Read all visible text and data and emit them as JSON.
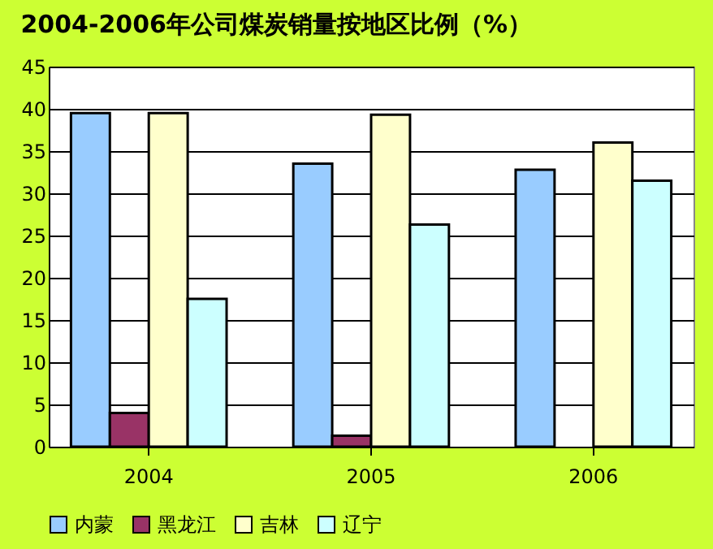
{
  "chart_data": {
    "type": "bar",
    "title": "2004-2006年公司煤炭销量按地区比例（%）",
    "categories": [
      "2004",
      "2005",
      "2006"
    ],
    "series": [
      {
        "name": "内蒙",
        "color": "#99ccff",
        "values": [
          39.5,
          33.5,
          32.8
        ]
      },
      {
        "name": "黑龙江",
        "color": "#993366",
        "values": [
          4,
          1.3,
          null
        ]
      },
      {
        "name": "吉林",
        "color": "#ffffcc",
        "values": [
          39.5,
          39.3,
          36
        ]
      },
      {
        "name": "辽宁",
        "color": "#ccffff",
        "values": [
          17.5,
          26.3,
          31.5
        ]
      }
    ],
    "ylim": [
      0,
      45
    ],
    "yticks": [
      0,
      5,
      10,
      15,
      20,
      25,
      30,
      35,
      40,
      45
    ],
    "grid": "y",
    "legend": "bottom"
  }
}
